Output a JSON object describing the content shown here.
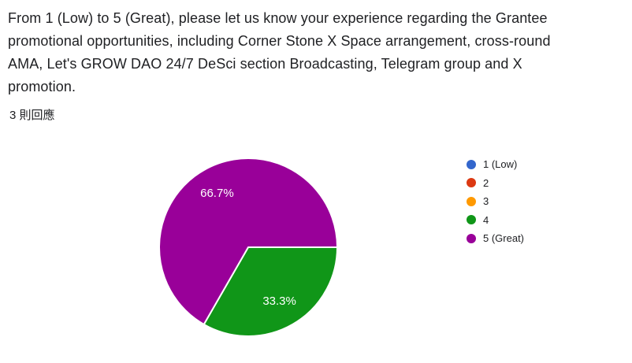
{
  "question": {
    "title": "From 1 (Low) to 5 (Great), please let us know your experience regarding the Grantee\npromotional opportunities, including Corner Stone X Space arrangement, cross-round\nAMA, Let's GROW DAO 24/7 DeSci section Broadcasting, Telegram group and X\npromotion.",
    "response_count": "3 則回應"
  },
  "chart_data": {
    "type": "pie",
    "title": "From 1 (Low) to 5 (Great), please let us know your experience regarding the Grantee promotional opportunities, including Corner Stone X Space arrangement, cross-round AMA, Let's GROW DAO 24/7 DeSci section Broadcasting, Telegram group and X promotion.",
    "total_responses": 3,
    "categories": [
      "1 (Low)",
      "2",
      "3",
      "4",
      "5 (Great)"
    ],
    "values_percent": [
      0,
      0,
      0,
      33.3,
      66.7
    ],
    "values_count": [
      0,
      0,
      0,
      1,
      2
    ],
    "percent_labels": [
      "0%",
      "0%",
      "0%",
      "33.3%",
      "66.7%"
    ],
    "colors": [
      "#3366CC",
      "#DC3912",
      "#FF9900",
      "#109618",
      "#990099"
    ],
    "slice_border_color": "#ffffff",
    "label_color": "#ffffff",
    "legend_position": "right",
    "start_angle_deg": 0,
    "direction": "clockwise"
  },
  "style": {
    "text_color": "#202124",
    "background": "#ffffff"
  }
}
